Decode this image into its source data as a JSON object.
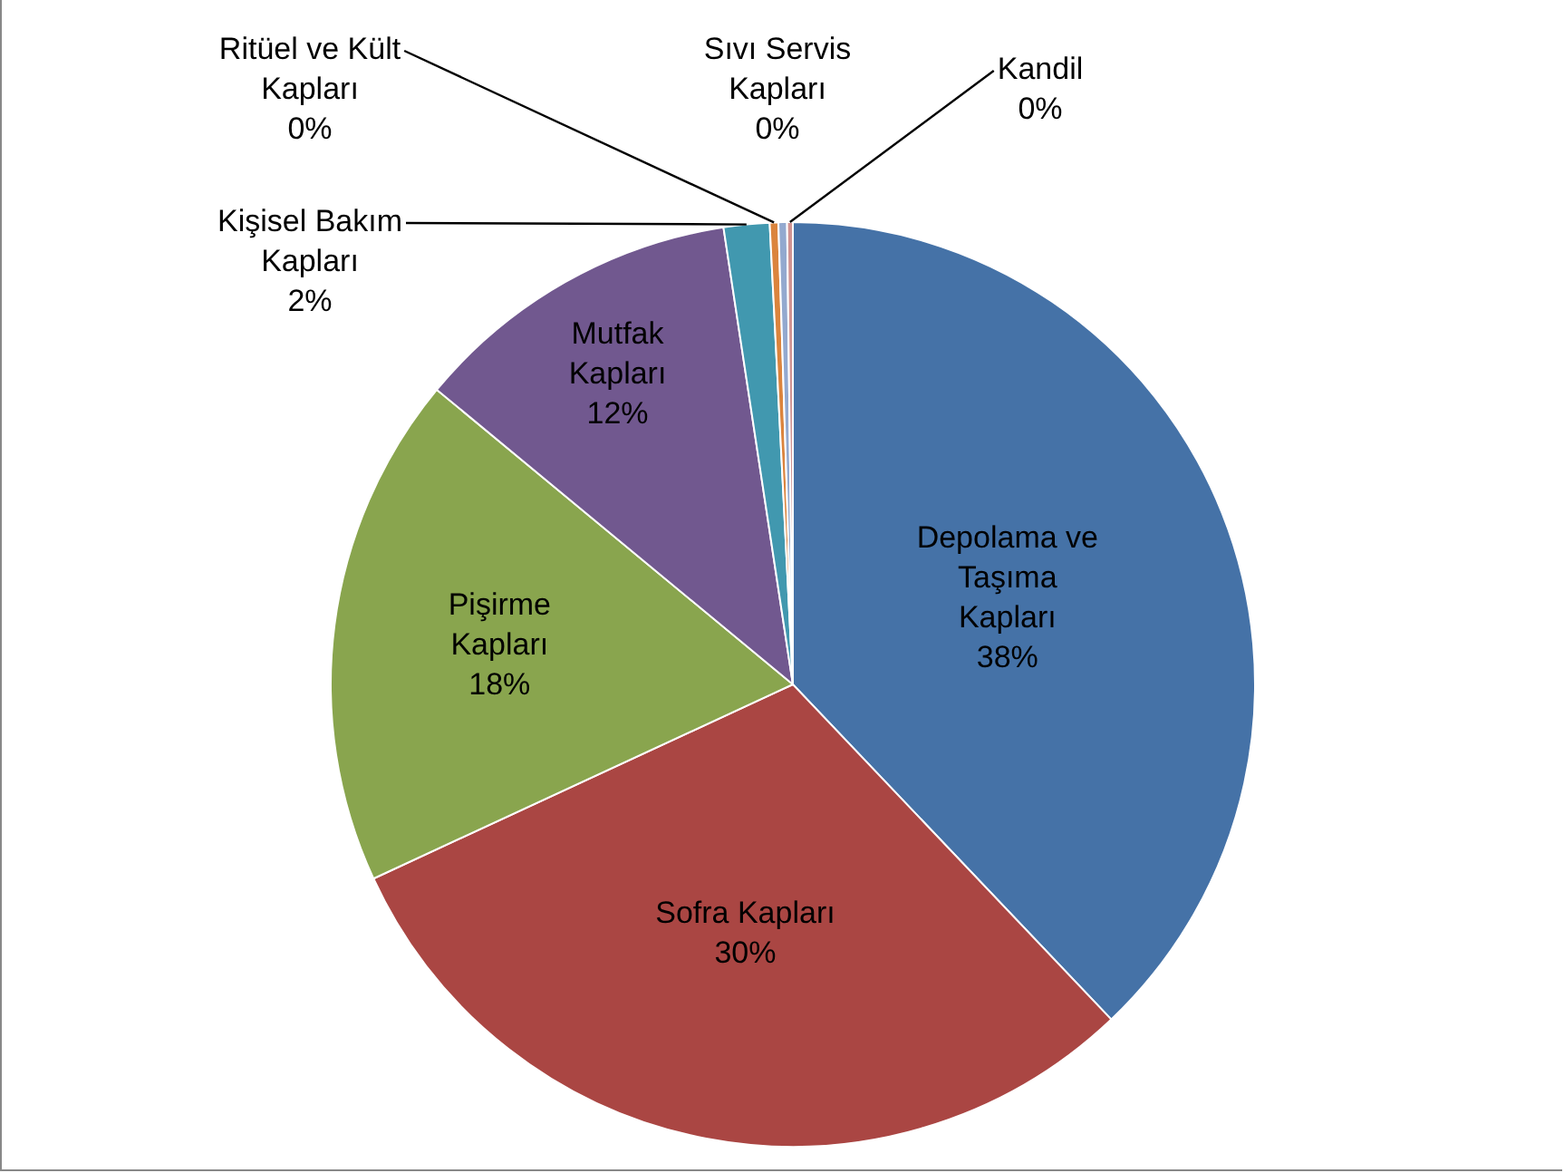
{
  "chart_data": {
    "type": "pie",
    "categories": [
      "Depolama ve Taşıma Kapları",
      "Sofra Kapları",
      "Pişirme Kapları",
      "Mutfak Kapları",
      "Kişisel Bakım Kapları",
      "Ritüel ve Kült Kapları",
      "Sıvı Servis Kapları",
      "Kandil"
    ],
    "values": [
      37.9,
      30.2,
      17.9,
      11.6,
      1.6,
      0.3,
      0.3,
      0.2
    ],
    "value_labels": [
      "38%",
      "30%",
      "18%",
      "12%",
      "2%",
      "0%",
      "0%",
      "0%"
    ],
    "colors": [
      "#4572a7",
      "#aa4643",
      "#89a54e",
      "#71588f",
      "#4198af",
      "#db843d",
      "#93a9cf",
      "#d19392"
    ],
    "legend": false
  }
}
